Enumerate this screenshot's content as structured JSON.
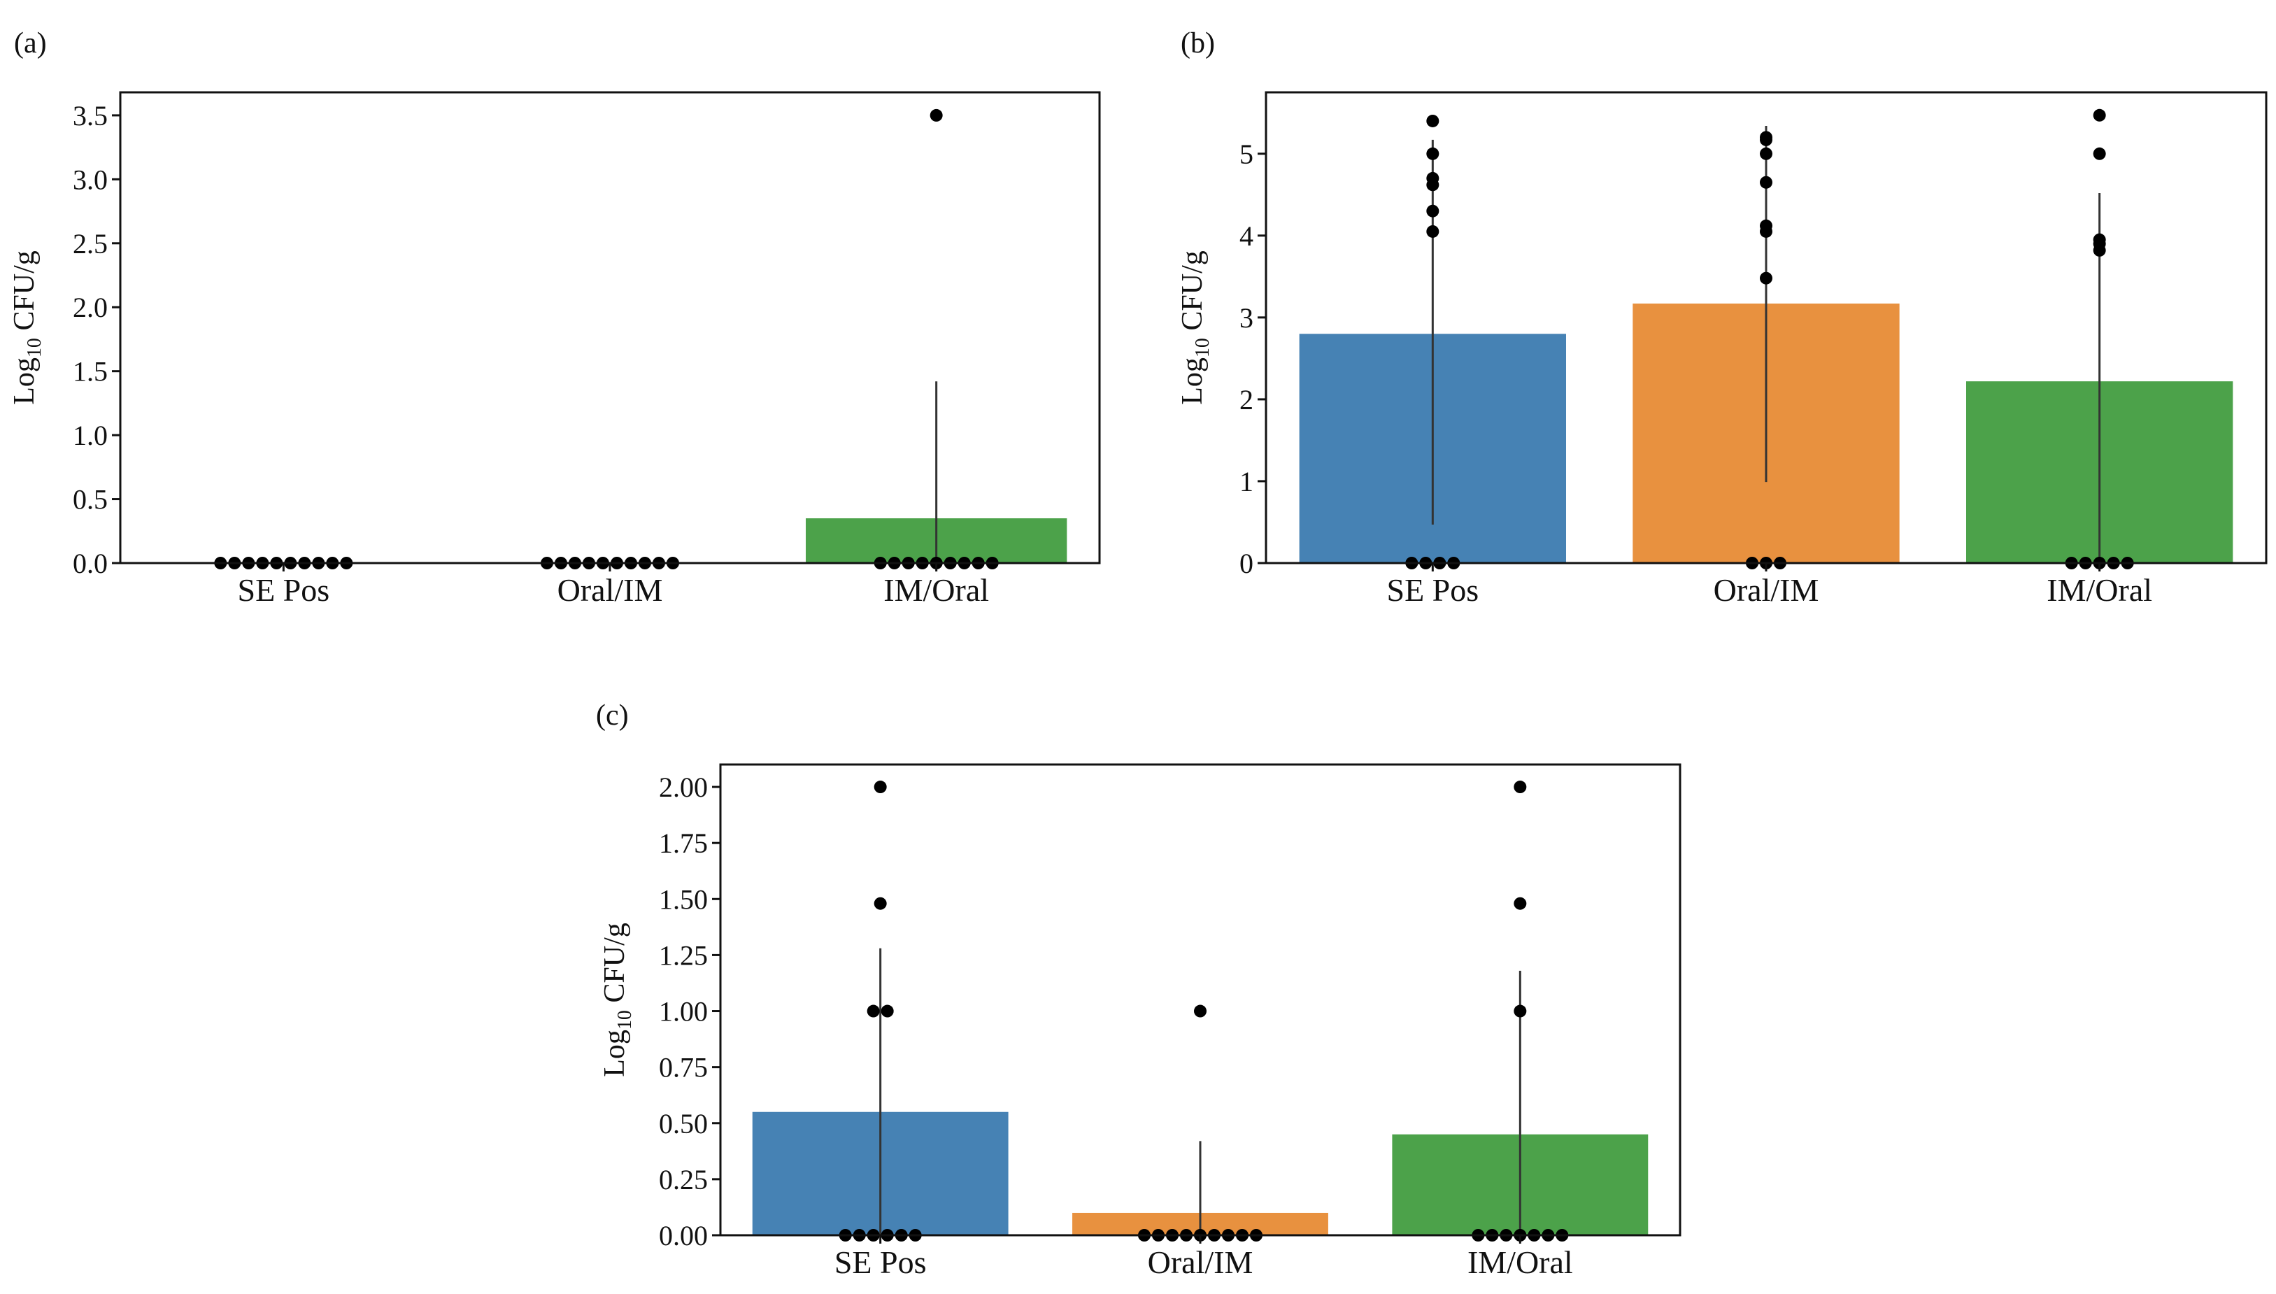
{
  "figure": {
    "colors": {
      "SE Pos": "#4682b4",
      "Oral/IM": "#e8913f",
      "IM/Oral": "#4ca24a"
    }
  },
  "chart_data": [
    {
      "panel": "(a)",
      "type": "bar",
      "ylabel_main": "Log",
      "ylabel_sub": "10",
      "ylabel_rest": " CFU/g",
      "categories": [
        "SE Pos",
        "Oral/IM",
        "IM/Oral"
      ],
      "values": [
        0,
        0,
        0.35
      ],
      "error_bars": [
        [
          0,
          0
        ],
        [
          0,
          0
        ],
        [
          0,
          1.42
        ]
      ],
      "ylim": [
        0,
        3.68
      ],
      "yticks": [
        0.0,
        0.5,
        1.0,
        1.5,
        2.0,
        2.5,
        3.0,
        3.5
      ],
      "ytick_labels": [
        "0.0",
        "0.5",
        "1.0",
        "1.5",
        "2.0",
        "2.5",
        "3.0",
        "3.5"
      ],
      "points": [
        [
          0,
          0,
          0,
          0,
          0,
          0,
          0,
          0,
          0,
          0
        ],
        [
          0,
          0,
          0,
          0,
          0,
          0,
          0,
          0,
          0,
          0
        ],
        [
          0,
          0,
          0,
          0,
          0,
          0,
          0,
          0,
          0,
          3.5
        ]
      ]
    },
    {
      "panel": "(b)",
      "type": "bar",
      "ylabel_main": "Log",
      "ylabel_sub": "10",
      "ylabel_rest": " CFU/g",
      "categories": [
        "SE Pos",
        "Oral/IM",
        "IM/Oral"
      ],
      "values": [
        2.8,
        3.17,
        2.22
      ],
      "error_bars": [
        [
          0.47,
          5.17
        ],
        [
          0.99,
          5.34
        ],
        [
          0,
          4.52
        ]
      ],
      "ylim": [
        0,
        5.75
      ],
      "yticks": [
        0,
        1,
        2,
        3,
        4,
        5
      ],
      "ytick_labels": [
        "0",
        "1",
        "2",
        "3",
        "4",
        "5"
      ],
      "points": [
        [
          0,
          0,
          0,
          0,
          4.05,
          4.3,
          4.62,
          4.7,
          5.0,
          5.4
        ],
        [
          0,
          0,
          0,
          3.48,
          4.05,
          4.12,
          4.65,
          5.0,
          5.17,
          5.2
        ],
        [
          0,
          0,
          0,
          0,
          0,
          3.82,
          3.9,
          3.95,
          5.0,
          5.47
        ]
      ]
    },
    {
      "panel": "(c)",
      "type": "bar",
      "ylabel_main": "Log",
      "ylabel_sub": "10",
      "ylabel_rest": " CFU/g",
      "categories": [
        "SE Pos",
        "Oral/IM",
        "IM/Oral"
      ],
      "values": [
        0.55,
        0.1,
        0.45
      ],
      "error_bars": [
        [
          0,
          1.28
        ],
        [
          0,
          0.42
        ],
        [
          0,
          1.18
        ]
      ],
      "ylim": [
        0,
        2.1
      ],
      "yticks": [
        0,
        0.25,
        0.5,
        0.75,
        1.0,
        1.25,
        1.5,
        1.75,
        2.0
      ],
      "ytick_labels": [
        "0.00",
        "0.25",
        "0.50",
        "0.75",
        "1.00",
        "1.25",
        "1.50",
        "1.75",
        "2.00"
      ],
      "points": [
        [
          0,
          0,
          0,
          0,
          0,
          0,
          1.0,
          1.0,
          1.48,
          2.0
        ],
        [
          0,
          0,
          0,
          0,
          0,
          0,
          0,
          0,
          0,
          1.0
        ],
        [
          0,
          0,
          0,
          0,
          0,
          0,
          0,
          1.0,
          1.48,
          2.0
        ]
      ]
    }
  ]
}
